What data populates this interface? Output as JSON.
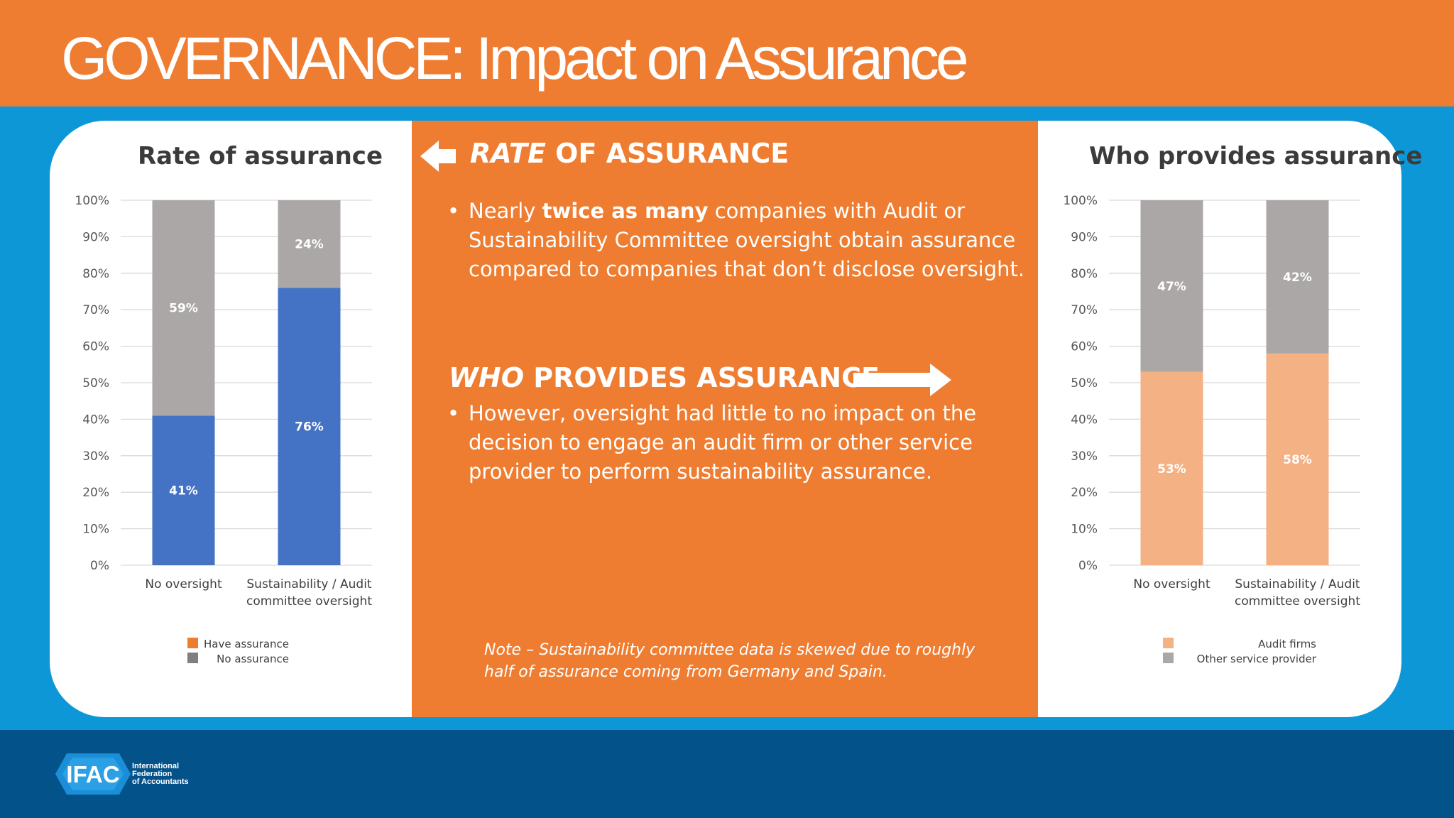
{
  "header": {
    "title": "GOVERNANCE:  Impact on Assurance"
  },
  "middle": {
    "rate_heading_em": "RATE",
    "rate_heading_rest": " OF ASSURANCE",
    "rate_bullet_pre": "Nearly ",
    "rate_bullet_bold": "twice as many",
    "rate_bullet_post": " companies with Audit or Sustainability Committee oversight obtain assurance compared to companies that don’t disclose oversight.",
    "who_heading_em": "WHO",
    "who_heading_rest": " PROVIDES ASSURANCE",
    "who_bullet": "However, oversight had little to no impact on the decision to engage an audit firm or other service provider to perform sustainability assurance.",
    "note": "Note – Sustainability committee data is skewed due to roughly half of assurance coming from Germany and Spain.",
    "arrow_left_icon": "arrow-left-icon",
    "arrow_right_icon": "arrow-right-icon"
  },
  "footer": {
    "logo_icon": "ifac-logo-icon",
    "logo_letters": "IFAC",
    "org_name": "International\nFederation\nof Accountants"
  },
  "chart_data": [
    {
      "type": "bar",
      "stacked": true,
      "title": "Rate of assurance",
      "categories": [
        "No oversight",
        "Sustainability / Audit committee oversight"
      ],
      "category_lines": [
        [
          "No oversight"
        ],
        [
          "Sustainability / Audit",
          "committee oversight"
        ]
      ],
      "series": [
        {
          "name": "Have assurance",
          "values": [
            41,
            76
          ],
          "labels": [
            "41%",
            "76%"
          ],
          "color": "#4472c4",
          "legend_color": "#ef7d31"
        },
        {
          "name": "No assurance",
          "values": [
            59,
            24
          ],
          "labels": [
            "59%",
            "24%"
          ],
          "color": "#aba7a7",
          "legend_color": "#7f7f7f"
        }
      ],
      "ylim": [
        0,
        100
      ],
      "yticks": [
        "0%",
        "10%",
        "20%",
        "30%",
        "40%",
        "50%",
        "60%",
        "70%",
        "80%",
        "90%",
        "100%"
      ],
      "grid": true,
      "legend_position": "bottom"
    },
    {
      "type": "bar",
      "stacked": true,
      "title": "Who provides assurance",
      "categories": [
        "No oversight",
        "Sustainability / Audit committee oversight"
      ],
      "category_lines": [
        [
          "No oversight"
        ],
        [
          "Sustainability / Audit",
          "committee oversight"
        ]
      ],
      "series": [
        {
          "name": "Audit firms",
          "values": [
            53,
            58
          ],
          "labels": [
            "53%",
            "58%"
          ],
          "color": "#f4b183",
          "legend_color": "#f4b183"
        },
        {
          "name": "Other service provider",
          "values": [
            47,
            42
          ],
          "labels": [
            "47%",
            "42%"
          ],
          "color": "#aba7a7",
          "legend_color": "#aba7a7"
        }
      ],
      "ylim": [
        0,
        100
      ],
      "yticks": [
        "0%",
        "10%",
        "20%",
        "30%",
        "40%",
        "50%",
        "60%",
        "70%",
        "80%",
        "90%",
        "100%"
      ],
      "grid": true,
      "legend_position": "bottom"
    }
  ]
}
